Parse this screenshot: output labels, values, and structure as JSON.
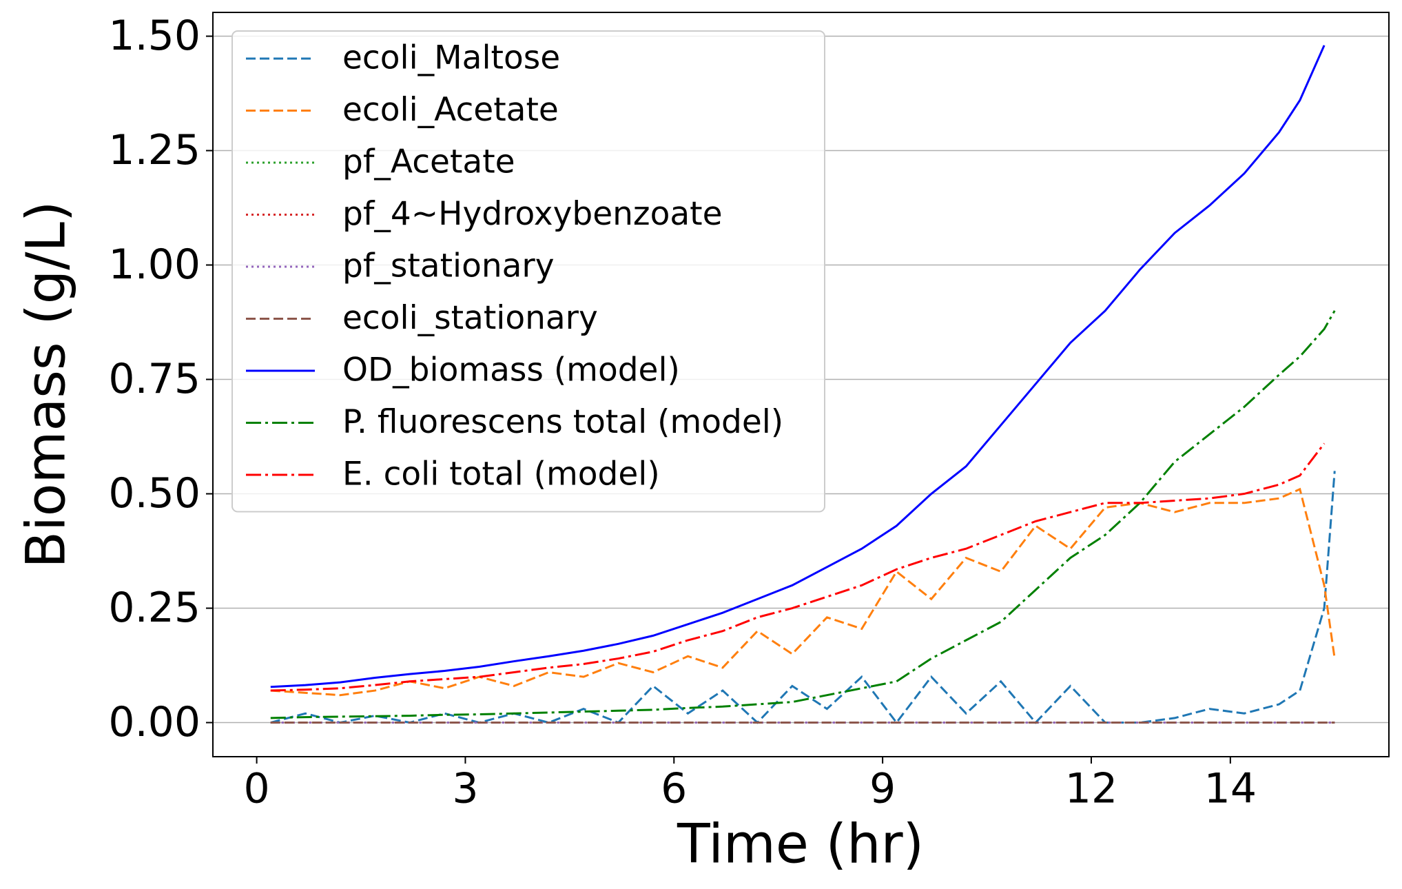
{
  "chart_data": {
    "type": "line",
    "xlabel": "Time (hr)",
    "ylabel": "Biomass (g/L)",
    "x": [
      0.2,
      0.7,
      1.2,
      1.7,
      2.2,
      2.7,
      3.2,
      3.7,
      4.2,
      4.7,
      5.2,
      5.7,
      6.2,
      6.7,
      7.2,
      7.7,
      8.2,
      8.7,
      9.2,
      9.7,
      10.2,
      10.7,
      11.2,
      11.7,
      12.2,
      12.7,
      13.2,
      13.7,
      14.2,
      14.7,
      15.0,
      15.35,
      15.5
    ],
    "series": [
      {
        "name": "ecoli_Maltose",
        "color": "#1f77b4",
        "linestyle": "dashed",
        "values": [
          0.0,
          0.02,
          0.0,
          0.015,
          0.0,
          0.02,
          0.0,
          0.02,
          0.0,
          0.03,
          0.0,
          0.08,
          0.02,
          0.07,
          0.0,
          0.08,
          0.03,
          0.1,
          0.0,
          0.1,
          0.02,
          0.09,
          0.0,
          0.08,
          0.0,
          0.0,
          0.01,
          0.03,
          0.02,
          0.04,
          0.07,
          0.25,
          0.55
        ]
      },
      {
        "name": "ecoli_Acetate",
        "color": "#ff7f0e",
        "linestyle": "dashed",
        "values": [
          0.07,
          0.065,
          0.06,
          0.07,
          0.09,
          0.075,
          0.1,
          0.08,
          0.11,
          0.1,
          0.13,
          0.11,
          0.145,
          0.12,
          0.2,
          0.15,
          0.23,
          0.205,
          0.33,
          0.27,
          0.36,
          0.33,
          0.43,
          0.38,
          0.47,
          0.48,
          0.46,
          0.48,
          0.48,
          0.49,
          0.51,
          0.3,
          0.14
        ]
      },
      {
        "name": "pf_Acetate",
        "color": "#2ca02c",
        "linestyle": "dotted",
        "values": [
          0,
          0,
          0,
          0,
          0,
          0,
          0,
          0,
          0,
          0,
          0,
          0,
          0,
          0,
          0,
          0,
          0,
          0,
          0,
          0,
          0,
          0,
          0,
          0,
          0,
          0,
          0,
          0,
          0,
          0,
          0,
          0,
          0
        ]
      },
      {
        "name": "pf_4~Hydroxybenzoate",
        "color": "#d62728",
        "linestyle": "dotted",
        "values": [
          0,
          0,
          0,
          0,
          0,
          0,
          0,
          0,
          0,
          0,
          0,
          0,
          0,
          0,
          0,
          0,
          0,
          0,
          0,
          0,
          0,
          0,
          0,
          0,
          0,
          0,
          0,
          0,
          0,
          0,
          0,
          0,
          0
        ]
      },
      {
        "name": "pf_stationary",
        "color": "#9467bd",
        "linestyle": "dotted",
        "values": [
          0,
          0,
          0,
          0,
          0,
          0,
          0,
          0,
          0,
          0,
          0,
          0,
          0,
          0,
          0,
          0,
          0,
          0,
          0,
          0,
          0,
          0,
          0,
          0,
          0,
          0,
          0,
          0,
          0,
          0,
          0,
          0,
          0
        ]
      },
      {
        "name": "ecoli_stationary",
        "color": "#8c564b",
        "linestyle": "dashed",
        "values": [
          0,
          0,
          0,
          0,
          0,
          0,
          0,
          0,
          0,
          0,
          0,
          0,
          0,
          0,
          0,
          0,
          0,
          0,
          0,
          0,
          0,
          0,
          0,
          0,
          0,
          0,
          0,
          0,
          0,
          0,
          0,
          0,
          0
        ]
      },
      {
        "name": "OD_biomass (model)",
        "color": "#0000ff",
        "linestyle": "solid",
        "values": [
          0.078,
          0.082,
          0.088,
          0.098,
          0.106,
          0.113,
          0.122,
          0.134,
          0.145,
          0.157,
          0.172,
          0.19,
          0.215,
          0.24,
          0.27,
          0.3,
          0.34,
          0.38,
          0.43,
          0.5,
          0.56,
          0.65,
          0.74,
          0.83,
          0.9,
          0.99,
          1.07,
          1.13,
          1.2,
          1.29,
          1.36,
          1.48,
          null
        ]
      },
      {
        "name": "P. fluorescens total (model)",
        "color": "#008000",
        "linestyle": "dashdot",
        "values": [
          0.01,
          0.012,
          0.013,
          0.014,
          0.015,
          0.017,
          0.018,
          0.02,
          0.022,
          0.024,
          0.026,
          0.028,
          0.032,
          0.035,
          0.04,
          0.045,
          0.06,
          0.075,
          0.09,
          0.14,
          0.18,
          0.22,
          0.29,
          0.36,
          0.41,
          0.48,
          0.57,
          0.63,
          0.69,
          0.76,
          0.8,
          0.86,
          0.9
        ]
      },
      {
        "name": "E. coli total (model)",
        "color": "#ff0000",
        "linestyle": "dashdot",
        "values": [
          0.07,
          0.072,
          0.075,
          0.082,
          0.09,
          0.095,
          0.1,
          0.11,
          0.12,
          0.128,
          0.14,
          0.155,
          0.18,
          0.2,
          0.23,
          0.25,
          0.275,
          0.3,
          0.335,
          0.36,
          0.38,
          0.41,
          0.44,
          0.46,
          0.48,
          0.48,
          0.485,
          0.49,
          0.5,
          0.52,
          0.54,
          0.61,
          null
        ]
      }
    ],
    "xlim": [
      -0.63,
      16.28
    ],
    "ylim": [
      -0.0745,
      1.552
    ],
    "xticks": [
      0,
      3,
      6,
      9,
      12,
      14
    ],
    "yticks": [
      {
        "value": 0,
        "label": "0.00"
      },
      {
        "value": 0.25,
        "label": "0.25"
      },
      {
        "value": 0.5,
        "label": "0.50"
      },
      {
        "value": 0.75,
        "label": "0.75"
      },
      {
        "value": 1,
        "label": "1.00"
      },
      {
        "value": 1.25,
        "label": "1.25"
      },
      {
        "value": 1.5,
        "label": "1.50"
      }
    ],
    "grid": "y",
    "legend": "upper left"
  }
}
